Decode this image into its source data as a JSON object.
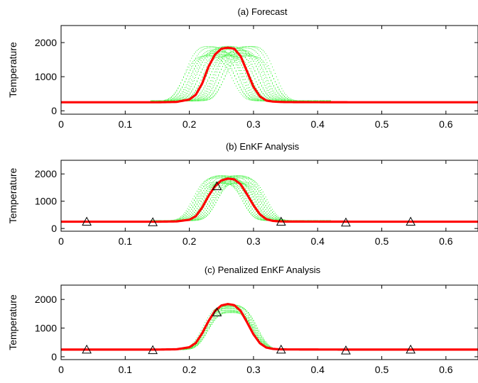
{
  "colors": {
    "ensemble": "#00ee00",
    "mean": "#ff0000",
    "observation": "#000000",
    "axes": "#000000",
    "background": "#ffffff"
  },
  "chart_data": [
    {
      "type": "scatter",
      "title": "(a) Forecast",
      "xlabel": "",
      "ylabel": "Temperature",
      "xlim": [
        0,
        0.65
      ],
      "ylim": [
        -100,
        2500
      ],
      "xticks": [
        0,
        0.1,
        0.2,
        0.3,
        0.4,
        0.5,
        0.6
      ],
      "xtick_labels": [
        "0",
        "0.1",
        "0.2",
        "0.3",
        "0.4",
        "0.5",
        "0.6"
      ],
      "yticks": [
        0,
        1000,
        2000
      ],
      "ytick_labels": [
        "0",
        "1000",
        "2000"
      ],
      "grid": false,
      "ensemble": {
        "members": 26,
        "center_min": 0.228,
        "center_max": 0.295,
        "peak": 1900,
        "base": 300
      },
      "series": [
        {
          "role": "mean",
          "x": [
            0,
            0.05,
            0.1,
            0.15,
            0.18,
            0.2,
            0.21,
            0.22,
            0.23,
            0.24,
            0.25,
            0.26,
            0.27,
            0.28,
            0.29,
            0.3,
            0.31,
            0.32,
            0.33,
            0.34,
            0.35,
            0.4,
            0.45,
            0.5,
            0.55,
            0.6,
            0.65
          ],
          "y": [
            250,
            250,
            250,
            250,
            260,
            330,
            470,
            800,
            1300,
            1650,
            1820,
            1850,
            1820,
            1600,
            1150,
            700,
            420,
            300,
            270,
            260,
            255,
            252,
            250,
            250,
            250,
            250,
            250
          ]
        }
      ],
      "observations": {
        "x": [],
        "y": []
      }
    },
    {
      "type": "scatter",
      "title": "(b) EnKF Analysis",
      "xlabel": "",
      "ylabel": "Temperature",
      "xlim": [
        0,
        0.65
      ],
      "ylim": [
        -100,
        2500
      ],
      "xticks": [
        0,
        0.1,
        0.2,
        0.3,
        0.4,
        0.5,
        0.6
      ],
      "xtick_labels": [
        "0",
        "0.1",
        "0.2",
        "0.3",
        "0.4",
        "0.5",
        "0.6"
      ],
      "yticks": [
        0,
        1000,
        2000
      ],
      "ytick_labels": [
        "0",
        "1000",
        "2000"
      ],
      "grid": false,
      "ensemble": {
        "members": 22,
        "center_min": 0.243,
        "center_max": 0.282,
        "peak": 1950,
        "base": 300
      },
      "series": [
        {
          "role": "mean",
          "x": [
            0,
            0.05,
            0.1,
            0.15,
            0.18,
            0.2,
            0.21,
            0.22,
            0.23,
            0.24,
            0.25,
            0.26,
            0.27,
            0.28,
            0.29,
            0.3,
            0.31,
            0.32,
            0.33,
            0.34,
            0.35,
            0.4,
            0.45,
            0.5,
            0.55,
            0.6,
            0.65
          ],
          "y": [
            250,
            250,
            250,
            250,
            260,
            320,
            450,
            770,
            1200,
            1550,
            1760,
            1830,
            1800,
            1620,
            1250,
            850,
            520,
            340,
            280,
            262,
            255,
            252,
            250,
            250,
            250,
            250,
            250
          ]
        }
      ],
      "observations": {
        "x": [
          0.04,
          0.143,
          0.243,
          0.343,
          0.444,
          0.545
        ],
        "y": [
          250,
          230,
          1550,
          250,
          220,
          250
        ]
      }
    },
    {
      "type": "scatter",
      "title": "(c) Penalized EnKF Analysis",
      "xlabel": "",
      "ylabel": "Temperature",
      "xlim": [
        0,
        0.65
      ],
      "ylim": [
        -100,
        2500
      ],
      "xticks": [
        0,
        0.1,
        0.2,
        0.3,
        0.4,
        0.5,
        0.6
      ],
      "xtick_labels": [
        "0",
        "0.1",
        "0.2",
        "0.3",
        "0.4",
        "0.5",
        "0.6"
      ],
      "yticks": [
        0,
        1000,
        2000
      ],
      "ytick_labels": [
        "0",
        "1000",
        "2000"
      ],
      "grid": false,
      "ensemble": {
        "members": 14,
        "center_min": 0.258,
        "center_max": 0.268,
        "peak": 1820,
        "base": 260
      },
      "series": [
        {
          "role": "mean",
          "x": [
            0,
            0.05,
            0.1,
            0.15,
            0.18,
            0.2,
            0.21,
            0.22,
            0.23,
            0.24,
            0.25,
            0.26,
            0.27,
            0.28,
            0.29,
            0.3,
            0.31,
            0.32,
            0.33,
            0.34,
            0.35,
            0.4,
            0.45,
            0.5,
            0.55,
            0.6,
            0.65
          ],
          "y": [
            250,
            250,
            250,
            250,
            260,
            330,
            480,
            820,
            1250,
            1600,
            1790,
            1840,
            1800,
            1600,
            1200,
            780,
            470,
            320,
            275,
            260,
            255,
            252,
            250,
            250,
            250,
            250,
            250
          ]
        }
      ],
      "observations": {
        "x": [
          0.04,
          0.143,
          0.243,
          0.343,
          0.444,
          0.545
        ],
        "y": [
          250,
          230,
          1550,
          250,
          220,
          250
        ]
      }
    }
  ]
}
